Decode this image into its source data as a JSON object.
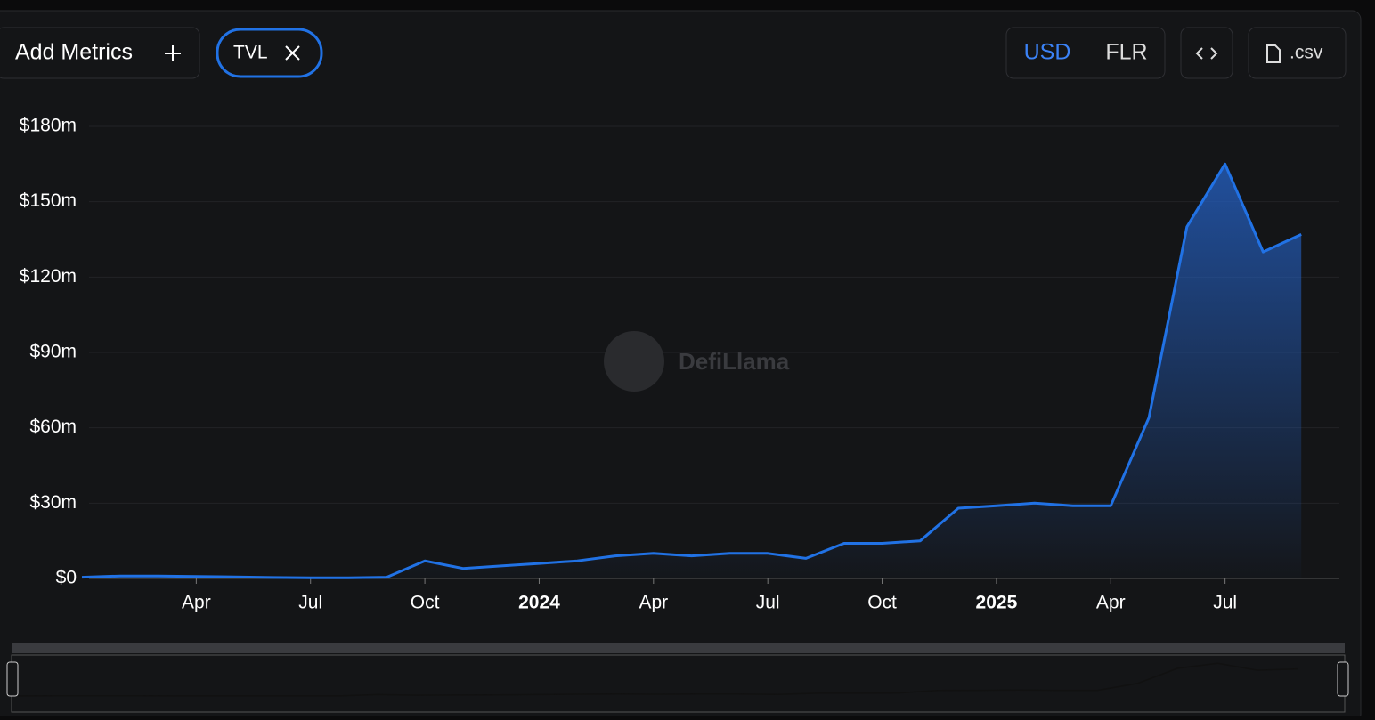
{
  "ui": {
    "add_metrics": "Add Metrics",
    "metric_tag": "TVL",
    "currency_options": [
      "USD",
      "FLR"
    ],
    "csv_button": ".csv",
    "watermark": "DefiLlama"
  },
  "chart_data": {
    "type": "area",
    "series": [
      {
        "name": "TVL",
        "color": "#2172e5",
        "values": [
          500000,
          1000000,
          1000000,
          800000,
          600000,
          400000,
          300000,
          300000,
          500000,
          7000000,
          4000000,
          5000000,
          6000000,
          7000000,
          9000000,
          10000000,
          9000000,
          10000000,
          10000000,
          8000000,
          14000000,
          14000000,
          15000000,
          28000000,
          29000000,
          30000000,
          29000000,
          29000000,
          64000000,
          140000000,
          165000000,
          130000000,
          137000000
        ]
      }
    ],
    "x": [
      "2023-01",
      "2023-02",
      "2023-03",
      "2023-04",
      "2023-05",
      "2023-06",
      "2023-07",
      "2023-08",
      "2023-09",
      "2023-10",
      "2023-11",
      "2023-12",
      "2024-01",
      "2024-02",
      "2024-03",
      "2024-04",
      "2024-05",
      "2024-06",
      "2024-07",
      "2024-08",
      "2024-09",
      "2024-10",
      "2024-11",
      "2024-12",
      "2025-01",
      "2025-02",
      "2025-03",
      "2025-04",
      "2025-05",
      "2025-06",
      "2025-07",
      "2025-08",
      "2025-09"
    ],
    "xlim": [
      "2023-01",
      "2025-10"
    ],
    "xticks": [
      {
        "value": "2023-04",
        "label": "Apr"
      },
      {
        "value": "2023-07",
        "label": "Jul"
      },
      {
        "value": "2023-10",
        "label": "Oct"
      },
      {
        "value": "2024-01",
        "label": "2024"
      },
      {
        "value": "2024-04",
        "label": "Apr"
      },
      {
        "value": "2024-07",
        "label": "Jul"
      },
      {
        "value": "2024-10",
        "label": "Oct"
      },
      {
        "value": "2025-01",
        "label": "2025"
      },
      {
        "value": "2025-04",
        "label": "Apr"
      },
      {
        "value": "2025-07",
        "label": "Jul"
      }
    ],
    "ylim": [
      0,
      180000000
    ],
    "yticks": [
      {
        "value": 0,
        "label": "$0"
      },
      {
        "value": 30000000,
        "label": "$30m"
      },
      {
        "value": 60000000,
        "label": "$60m"
      },
      {
        "value": 90000000,
        "label": "$90m"
      },
      {
        "value": 120000000,
        "label": "$120m"
      },
      {
        "value": 150000000,
        "label": "$150m"
      },
      {
        "value": 180000000,
        "label": "$180m"
      }
    ],
    "grid": true
  }
}
